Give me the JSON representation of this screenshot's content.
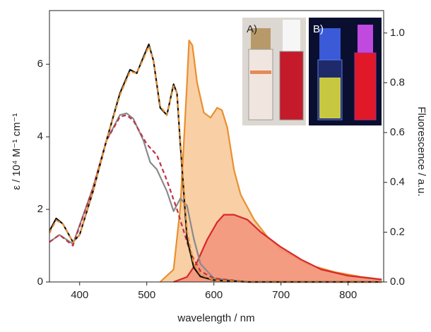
{
  "chart_data": {
    "type": "line",
    "xlabel": "wavelength / nm",
    "ylabel": "ε / 10⁴ M⁻¹ cm⁻¹",
    "y2label": "Fluorescence / a.u.",
    "annotations": [
      "A)",
      "B)"
    ],
    "xlim": [
      355,
      853
    ],
    "xticks": [
      400,
      500,
      600,
      700,
      800
    ],
    "ylim": [
      0,
      7.48
    ],
    "yticks": [
      0,
      2,
      4,
      6
    ],
    "y2lim": [
      0,
      1.09
    ],
    "y2ticks": [
      {
        "value": 0,
        "label": "0.0"
      },
      0.2,
      0.4,
      0.6,
      0.8,
      {
        "value": 1,
        "label": "1.0"
      }
    ],
    "series": [
      {
        "color": "#f8c796",
        "line_color": "#e8902e",
        "fill": true,
        "axis": "y2",
        "x": [
          520,
          540,
          550,
          555,
          560,
          563,
          568,
          575,
          585,
          595,
          605,
          612,
          620,
          630,
          640,
          660,
          680,
          700,
          740,
          780,
          820,
          850
        ],
        "values": [
          0,
          0.05,
          0.3,
          0.55,
          0.8,
          0.97,
          0.95,
          0.8,
          0.68,
          0.66,
          0.7,
          0.69,
          0.62,
          0.45,
          0.35,
          0.25,
          0.18,
          0.13,
          0.07,
          0.04,
          0.02,
          0.01
        ]
      },
      {
        "color": "#f2937a",
        "line_color": "#d8282a",
        "fill": true,
        "axis": "y2",
        "x": [
          540,
          560,
          575,
          590,
          605,
          615,
          630,
          650,
          670,
          700,
          730,
          760,
          800,
          850
        ],
        "values": [
          0,
          0.02,
          0.08,
          0.17,
          0.24,
          0.27,
          0.27,
          0.25,
          0.2,
          0.14,
          0.09,
          0.05,
          0.025,
          0.01
        ]
      },
      {
        "color": "#8a8a8a",
        "axis": "y",
        "x": [
          355,
          370,
          390,
          420,
          440,
          460,
          470,
          480,
          495,
          505,
          515,
          530,
          540,
          550,
          560,
          570,
          580,
          600,
          650,
          850
        ],
        "values": [
          1.1,
          1.3,
          1.05,
          2.6,
          3.9,
          4.6,
          4.65,
          4.5,
          3.9,
          3.3,
          3.1,
          2.5,
          1.95,
          2.3,
          2.1,
          1.2,
          0.5,
          0.1,
          0,
          0
        ]
      },
      {
        "color": "#c0304a",
        "axis": "y",
        "dashed": true,
        "x": [
          355,
          370,
          390,
          420,
          440,
          460,
          470,
          480,
          500,
          515,
          530,
          545,
          555,
          565,
          580,
          600,
          650,
          850
        ],
        "values": [
          1.1,
          1.3,
          1.0,
          2.6,
          3.9,
          4.55,
          4.6,
          4.45,
          3.8,
          3.5,
          2.8,
          2.0,
          1.4,
          0.8,
          0.3,
          0.1,
          0,
          0
        ]
      },
      {
        "color": "#111111",
        "axis": "y",
        "x": [
          355,
          365,
          375,
          390,
          400,
          420,
          440,
          460,
          475,
          485,
          495,
          503,
          510,
          520,
          530,
          540,
          545,
          550,
          555,
          560,
          570,
          580,
          600,
          650,
          850
        ],
        "values": [
          1.4,
          1.75,
          1.6,
          1.1,
          1.3,
          2.5,
          3.9,
          5.2,
          5.85,
          5.75,
          6.2,
          6.55,
          6.1,
          4.8,
          4.6,
          5.45,
          5.2,
          3.8,
          2.5,
          1.2,
          0.4,
          0.15,
          0.05,
          0,
          0
        ]
      },
      {
        "color": "#e8902e",
        "axis": "y",
        "dashed": true,
        "x": [
          355,
          365,
          375,
          390,
          400,
          420,
          440,
          460,
          475,
          485,
          495,
          503,
          510,
          520,
          530,
          540,
          545,
          550,
          555,
          560,
          570,
          580,
          600,
          650,
          850
        ],
        "values": [
          1.35,
          1.7,
          1.6,
          1.1,
          1.3,
          2.5,
          3.9,
          5.15,
          5.8,
          5.75,
          6.15,
          6.5,
          6.1,
          4.85,
          4.6,
          5.4,
          5.2,
          3.9,
          2.6,
          1.4,
          0.5,
          0.2,
          0.05,
          0,
          0
        ]
      }
    ]
  }
}
